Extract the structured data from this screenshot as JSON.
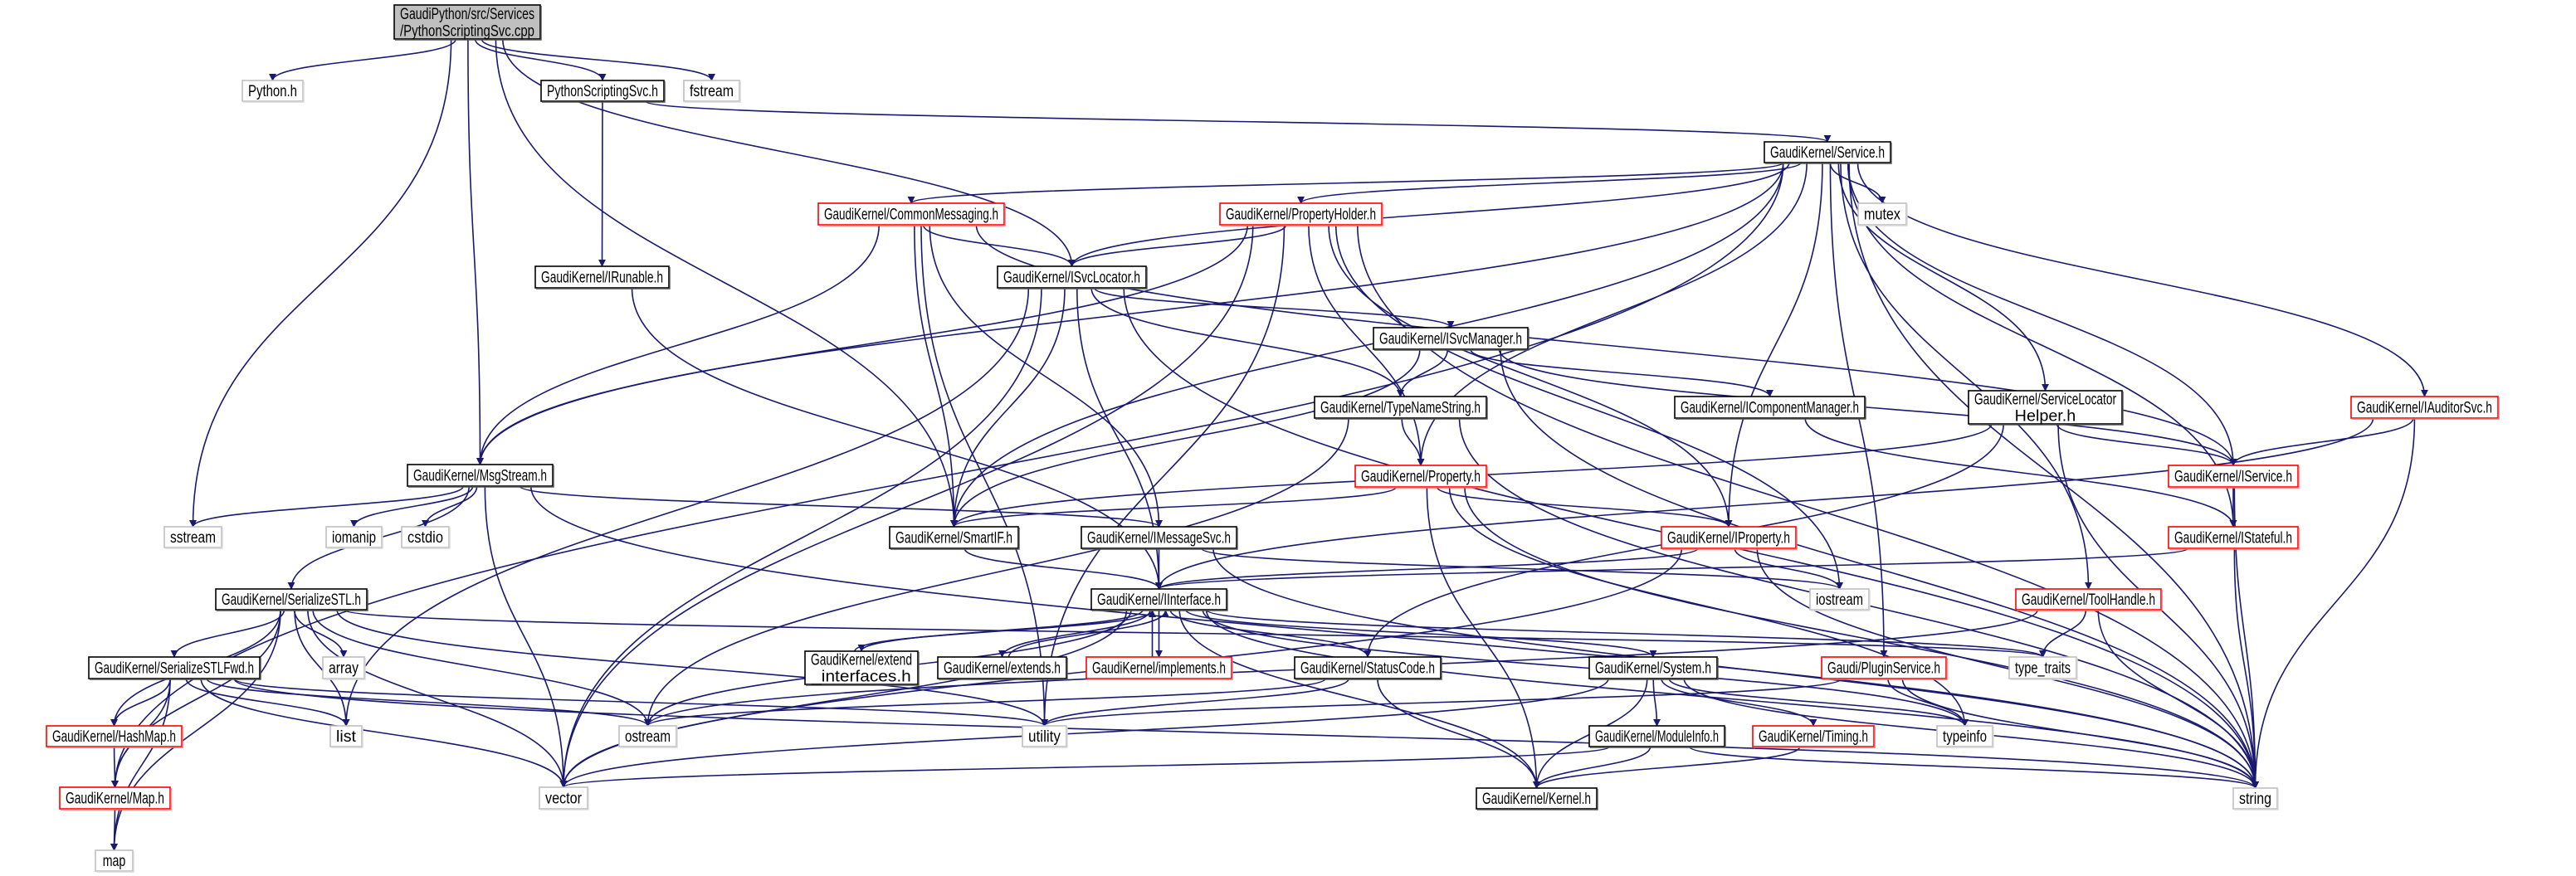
{
  "colors": {
    "edge": "#191970",
    "normal_border": "#000000",
    "incomplete_border": "#ff0000",
    "external_border": "#bfbfbf",
    "root_fill": "#bfbfbf"
  },
  "graph": {
    "nodes": [
      {
        "id": "root",
        "lines": [
          "GaudiPython/src/Services",
          "/PythonScriptingSvc.cpp"
        ],
        "kind": "root"
      },
      {
        "id": "python",
        "lines": [
          "Python.h"
        ],
        "kind": "external"
      },
      {
        "id": "pss",
        "lines": [
          "PythonScriptingSvc.h"
        ],
        "kind": "normal"
      },
      {
        "id": "fstream",
        "lines": [
          "fstream"
        ],
        "kind": "external"
      },
      {
        "id": "service",
        "lines": [
          "GaudiKernel/Service.h"
        ],
        "kind": "normal"
      },
      {
        "id": "mutex",
        "lines": [
          "mutex"
        ],
        "kind": "external"
      },
      {
        "id": "commsg",
        "lines": [
          "GaudiKernel/CommonMessaging.h"
        ],
        "kind": "incomplete"
      },
      {
        "id": "propholder",
        "lines": [
          "GaudiKernel/PropertyHolder.h"
        ],
        "kind": "incomplete"
      },
      {
        "id": "irunable",
        "lines": [
          "GaudiKernel/IRunable.h"
        ],
        "kind": "normal"
      },
      {
        "id": "isvcloc",
        "lines": [
          "GaudiKernel/ISvcLocator.h"
        ],
        "kind": "normal"
      },
      {
        "id": "isvcmgr",
        "lines": [
          "GaudiKernel/ISvcManager.h"
        ],
        "kind": "normal"
      },
      {
        "id": "typename",
        "lines": [
          "GaudiKernel/TypeNameString.h"
        ],
        "kind": "normal"
      },
      {
        "id": "icompmgr",
        "lines": [
          "GaudiKernel/IComponentManager.h"
        ],
        "kind": "normal"
      },
      {
        "id": "slhelper",
        "lines": [
          "GaudiKernel/ServiceLocator",
          "Helper.h"
        ],
        "kind": "normal"
      },
      {
        "id": "iauditor",
        "lines": [
          "GaudiKernel/IAuditorSvc.h"
        ],
        "kind": "incomplete"
      },
      {
        "id": "property",
        "lines": [
          "GaudiKernel/Property.h"
        ],
        "kind": "incomplete"
      },
      {
        "id": "iservice",
        "lines": [
          "GaudiKernel/IService.h"
        ],
        "kind": "incomplete"
      },
      {
        "id": "msgstream",
        "lines": [
          "GaudiKernel/MsgStream.h"
        ],
        "kind": "normal"
      },
      {
        "id": "sstream",
        "lines": [
          "sstream"
        ],
        "kind": "external"
      },
      {
        "id": "iomanip",
        "lines": [
          "iomanip"
        ],
        "kind": "external"
      },
      {
        "id": "cstdio",
        "lines": [
          "cstdio"
        ],
        "kind": "external"
      },
      {
        "id": "smartif",
        "lines": [
          "GaudiKernel/SmartIF.h"
        ],
        "kind": "normal"
      },
      {
        "id": "imsgsvc",
        "lines": [
          "GaudiKernel/IMessageSvc.h"
        ],
        "kind": "normal"
      },
      {
        "id": "iproperty",
        "lines": [
          "GaudiKernel/IProperty.h"
        ],
        "kind": "incomplete"
      },
      {
        "id": "istateful",
        "lines": [
          "GaudiKernel/IStateful.h"
        ],
        "kind": "incomplete"
      },
      {
        "id": "serializestl",
        "lines": [
          "GaudiKernel/SerializeSTL.h"
        ],
        "kind": "normal"
      },
      {
        "id": "iinterface",
        "lines": [
          "GaudiKernel/IInterface.h"
        ],
        "kind": "normal"
      },
      {
        "id": "iostream",
        "lines": [
          "iostream"
        ],
        "kind": "external"
      },
      {
        "id": "toolhandle",
        "lines": [
          "GaudiKernel/ToolHandle.h"
        ],
        "kind": "incomplete"
      },
      {
        "id": "fwd",
        "lines": [
          "GaudiKernel/SerializeSTLFwd.h"
        ],
        "kind": "normal"
      },
      {
        "id": "array",
        "lines": [
          "array"
        ],
        "kind": "external"
      },
      {
        "id": "extendif",
        "lines": [
          "GaudiKernel/extend",
          "_interfaces.h"
        ],
        "kind": "normal"
      },
      {
        "id": "extends",
        "lines": [
          "GaudiKernel/extends.h"
        ],
        "kind": "normal"
      },
      {
        "id": "implements",
        "lines": [
          "GaudiKernel/implements.h"
        ],
        "kind": "incomplete"
      },
      {
        "id": "statuscode",
        "lines": [
          "GaudiKernel/StatusCode.h"
        ],
        "kind": "normal"
      },
      {
        "id": "system",
        "lines": [
          "GaudiKernel/System.h"
        ],
        "kind": "normal"
      },
      {
        "id": "plugin",
        "lines": [
          "Gaudi/PluginService.h"
        ],
        "kind": "incomplete"
      },
      {
        "id": "typetraits",
        "lines": [
          "type_traits"
        ],
        "kind": "external"
      },
      {
        "id": "hashmap",
        "lines": [
          "GaudiKernel/HashMap.h"
        ],
        "kind": "incomplete"
      },
      {
        "id": "list",
        "lines": [
          "list"
        ],
        "kind": "external"
      },
      {
        "id": "ostream",
        "lines": [
          "ostream"
        ],
        "kind": "external"
      },
      {
        "id": "utility",
        "lines": [
          "utility"
        ],
        "kind": "external"
      },
      {
        "id": "moduleinfo",
        "lines": [
          "GaudiKernel/ModuleInfo.h"
        ],
        "kind": "normal"
      },
      {
        "id": "timing",
        "lines": [
          "GaudiKernel/Timing.h"
        ],
        "kind": "incomplete"
      },
      {
        "id": "typeinfo",
        "lines": [
          "typeinfo"
        ],
        "kind": "external"
      },
      {
        "id": "maph",
        "lines": [
          "GaudiKernel/Map.h"
        ],
        "kind": "incomplete"
      },
      {
        "id": "vector",
        "lines": [
          "vector"
        ],
        "kind": "external"
      },
      {
        "id": "kernel",
        "lines": [
          "GaudiKernel/Kernel.h"
        ],
        "kind": "normal"
      },
      {
        "id": "string",
        "lines": [
          "string"
        ],
        "kind": "external"
      },
      {
        "id": "map",
        "lines": [
          "map"
        ],
        "kind": "external"
      }
    ],
    "edges": [
      [
        "root",
        "python"
      ],
      [
        "root",
        "pss"
      ],
      [
        "root",
        "fstream"
      ],
      [
        "root",
        "sstream"
      ],
      [
        "root",
        "msgstream"
      ],
      [
        "root",
        "smartif"
      ],
      [
        "root",
        "isvcloc"
      ],
      [
        "pss",
        "service"
      ],
      [
        "pss",
        "irunable"
      ],
      [
        "irunable",
        "iinterface"
      ],
      [
        "service",
        "commsg"
      ],
      [
        "service",
        "propholder"
      ],
      [
        "service",
        "isvcloc"
      ],
      [
        "service",
        "smartif"
      ],
      [
        "service",
        "mutex"
      ],
      [
        "service",
        "property"
      ],
      [
        "service",
        "iproperty"
      ],
      [
        "service",
        "slhelper"
      ],
      [
        "service",
        "iservice"
      ],
      [
        "service",
        "istateful"
      ],
      [
        "service",
        "iauditor"
      ],
      [
        "service",
        "toolhandle"
      ],
      [
        "service",
        "plugin"
      ],
      [
        "service",
        "string"
      ],
      [
        "service",
        "msgstream"
      ],
      [
        "service",
        "maph"
      ],
      [
        "commsg",
        "msgstream"
      ],
      [
        "commsg",
        "smartif"
      ],
      [
        "commsg",
        "isvcloc"
      ],
      [
        "commsg",
        "imsgsvc"
      ],
      [
        "commsg",
        "iservice"
      ],
      [
        "commsg",
        "utility"
      ],
      [
        "propholder",
        "isvcloc"
      ],
      [
        "propholder",
        "msgstream"
      ],
      [
        "propholder",
        "property"
      ],
      [
        "propholder",
        "iproperty"
      ],
      [
        "propholder",
        "iostream"
      ],
      [
        "propholder",
        "string"
      ],
      [
        "propholder",
        "vector"
      ],
      [
        "propholder",
        "utility"
      ],
      [
        "isvcloc",
        "isvcmgr"
      ],
      [
        "isvcloc",
        "typename"
      ],
      [
        "isvcloc",
        "smartif"
      ],
      [
        "isvcloc",
        "iinterface"
      ],
      [
        "isvcloc",
        "list"
      ],
      [
        "isvcloc",
        "string"
      ],
      [
        "isvcloc",
        "vector"
      ],
      [
        "isvcmgr",
        "typename"
      ],
      [
        "isvcmgr",
        "smartif"
      ],
      [
        "isvcmgr",
        "icompmgr"
      ],
      [
        "isvcmgr",
        "iservice"
      ],
      [
        "isvcmgr",
        "string"
      ],
      [
        "typename",
        "property"
      ],
      [
        "typename",
        "ostream"
      ],
      [
        "typename",
        "string"
      ],
      [
        "icompmgr",
        "istateful"
      ],
      [
        "slhelper",
        "smartif"
      ],
      [
        "slhelper",
        "iservice"
      ],
      [
        "slhelper",
        "statuscode"
      ],
      [
        "slhelper",
        "string"
      ],
      [
        "iauditor",
        "iservice"
      ],
      [
        "iauditor",
        "string"
      ],
      [
        "iauditor",
        "iinterface"
      ],
      [
        "iservice",
        "istateful"
      ],
      [
        "iservice",
        "string"
      ],
      [
        "istateful",
        "iinterface"
      ],
      [
        "istateful",
        "string"
      ],
      [
        "property",
        "smartif"
      ],
      [
        "property",
        "iproperty"
      ],
      [
        "property",
        "kernel"
      ],
      [
        "property",
        "string"
      ],
      [
        "property",
        "typeinfo"
      ],
      [
        "iproperty",
        "iinterface"
      ],
      [
        "iproperty",
        "iostream"
      ],
      [
        "iproperty",
        "string"
      ],
      [
        "iproperty",
        "vector"
      ],
      [
        "msgstream",
        "sstream"
      ],
      [
        "msgstream",
        "iomanip"
      ],
      [
        "msgstream",
        "cstdio"
      ],
      [
        "msgstream",
        "serializestl"
      ],
      [
        "msgstream",
        "vector"
      ],
      [
        "msgstream",
        "imsgsvc"
      ],
      [
        "msgstream",
        "string"
      ],
      [
        "smartif",
        "iinterface"
      ],
      [
        "imsgsvc",
        "iinterface"
      ],
      [
        "imsgsvc",
        "iostream"
      ],
      [
        "imsgsvc",
        "string"
      ],
      [
        "serializestl",
        "fwd"
      ],
      [
        "serializestl",
        "array"
      ],
      [
        "serializestl",
        "list"
      ],
      [
        "serializestl",
        "ostream"
      ],
      [
        "serializestl",
        "vector"
      ],
      [
        "serializestl",
        "hashmap"
      ],
      [
        "serializestl",
        "maph"
      ],
      [
        "serializestl",
        "map"
      ],
      [
        "serializestl",
        "utility"
      ],
      [
        "serializestl",
        "typetraits"
      ],
      [
        "fwd",
        "hashmap"
      ],
      [
        "fwd",
        "maph"
      ],
      [
        "fwd",
        "map"
      ],
      [
        "fwd",
        "list"
      ],
      [
        "fwd",
        "vector"
      ],
      [
        "fwd",
        "ostream"
      ],
      [
        "fwd",
        "utility"
      ],
      [
        "fwd",
        "string"
      ],
      [
        "hashmap",
        "maph"
      ],
      [
        "maph",
        "map"
      ],
      [
        "iinterface",
        "extendif"
      ],
      [
        "iinterface",
        "extends"
      ],
      [
        "iinterface",
        "implements"
      ],
      [
        "iinterface",
        "statuscode"
      ],
      [
        "iinterface",
        "system"
      ],
      [
        "iinterface",
        "kernel"
      ],
      [
        "iinterface",
        "ostream"
      ],
      [
        "iinterface",
        "typeinfo"
      ],
      [
        "iinterface",
        "typetraits"
      ],
      [
        "iinterface",
        "vector"
      ],
      [
        "iinterface",
        "string"
      ],
      [
        "extendif",
        "iinterface"
      ],
      [
        "extends",
        "iinterface"
      ],
      [
        "implements",
        "iinterface"
      ],
      [
        "statuscode",
        "ostream"
      ],
      [
        "statuscode",
        "utility"
      ],
      [
        "statuscode",
        "kernel"
      ],
      [
        "system",
        "moduleinfo"
      ],
      [
        "system",
        "timing"
      ],
      [
        "system",
        "kernel"
      ],
      [
        "system",
        "typeinfo"
      ],
      [
        "system",
        "string"
      ],
      [
        "system",
        "vector"
      ],
      [
        "moduleinfo",
        "kernel"
      ],
      [
        "moduleinfo",
        "vector"
      ],
      [
        "moduleinfo",
        "string"
      ],
      [
        "timing",
        "kernel"
      ],
      [
        "toolhandle",
        "typetraits"
      ],
      [
        "toolhandle",
        "string"
      ],
      [
        "toolhandle",
        "ostream"
      ],
      [
        "plugin",
        "typeinfo"
      ],
      [
        "plugin",
        "string"
      ],
      [
        "plugin",
        "utility"
      ]
    ]
  }
}
